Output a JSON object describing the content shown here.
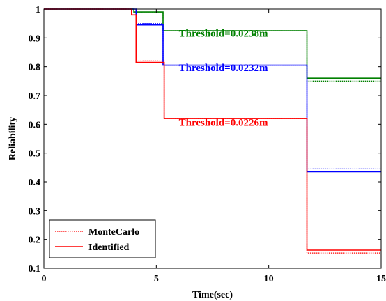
{
  "chart_data": {
    "type": "line",
    "xlabel": "Time(sec)",
    "ylabel": "Reliability",
    "xlim": [
      0,
      15
    ],
    "ylim": [
      0.1,
      1
    ],
    "xticks": [
      "0",
      "5",
      "10",
      "15"
    ],
    "yticks": [
      "0.1",
      "0.2",
      "0.3",
      "0.4",
      "0.5",
      "0.6",
      "0.7",
      "0.8",
      "0.9",
      "1"
    ],
    "grid": false,
    "legend": {
      "position": "bottom-left",
      "entries": [
        {
          "label": "MonteCarlo",
          "style": "dotted",
          "color": "#ff0000"
        },
        {
          "label": "Identified",
          "style": "solid",
          "color": "#ff0000"
        }
      ]
    },
    "annotations": [
      {
        "text": "Threshold=0.0238m",
        "color": "#008000",
        "x": 6.0,
        "y": 0.905
      },
      {
        "text": "Threshold=0.0232m",
        "color": "#0000ff",
        "x": 6.0,
        "y": 0.785
      },
      {
        "text": "Threshold=0.0226m",
        "color": "#ff0000",
        "x": 6.0,
        "y": 0.595
      }
    ],
    "series": [
      {
        "threshold": "0.0238m",
        "method": "MonteCarlo",
        "color": "#008000",
        "style": "dotted",
        "x": [
          0,
          4.0,
          4.0,
          5.3,
          5.3,
          11.7,
          11.7,
          15
        ],
        "y": [
          1.0,
          1.0,
          0.99,
          0.99,
          0.925,
          0.925,
          0.75,
          0.75
        ]
      },
      {
        "threshold": "0.0238m",
        "method": "Identified",
        "color": "#008000",
        "style": "solid",
        "x": [
          0,
          4.0,
          4.0,
          5.3,
          5.3,
          11.7,
          11.7,
          15
        ],
        "y": [
          1.0,
          1.0,
          0.99,
          0.99,
          0.925,
          0.925,
          0.76,
          0.76
        ]
      },
      {
        "threshold": "0.0232m",
        "method": "MonteCarlo",
        "color": "#0000ff",
        "style": "dotted",
        "x": [
          0,
          4.1,
          4.1,
          5.3,
          5.3,
          11.7,
          11.7,
          15
        ],
        "y": [
          1.0,
          1.0,
          0.95,
          0.95,
          0.805,
          0.805,
          0.445,
          0.445
        ]
      },
      {
        "threshold": "0.0232m",
        "method": "Identified",
        "color": "#0000ff",
        "style": "solid",
        "x": [
          0,
          4.1,
          4.1,
          5.3,
          5.3,
          11.7,
          11.7,
          15
        ],
        "y": [
          1.0,
          1.0,
          0.945,
          0.945,
          0.805,
          0.805,
          0.435,
          0.435
        ]
      },
      {
        "threshold": "0.0226m",
        "method": "MonteCarlo",
        "color": "#ff0000",
        "style": "dotted",
        "x": [
          0,
          3.9,
          3.9,
          4.1,
          4.1,
          5.35,
          5.35,
          11.7,
          11.7,
          15
        ],
        "y": [
          1.0,
          1.0,
          0.98,
          0.98,
          0.82,
          0.82,
          0.62,
          0.62,
          0.153,
          0.153
        ]
      },
      {
        "threshold": "0.0226m",
        "method": "Identified",
        "color": "#ff0000",
        "style": "solid",
        "x": [
          0,
          3.9,
          3.9,
          4.1,
          4.1,
          5.35,
          5.35,
          11.7,
          11.7,
          15
        ],
        "y": [
          1.0,
          1.0,
          0.98,
          0.98,
          0.815,
          0.815,
          0.62,
          0.62,
          0.163,
          0.163
        ]
      }
    ]
  }
}
